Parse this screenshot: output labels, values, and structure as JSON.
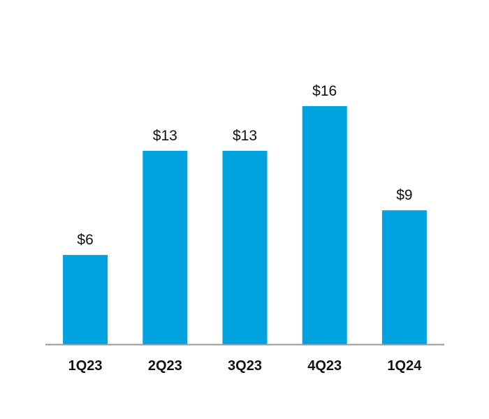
{
  "chart_data": {
    "type": "bar",
    "categories": [
      "1Q23",
      "2Q23",
      "3Q23",
      "4Q23",
      "1Q24"
    ],
    "values": [
      6,
      13,
      13,
      16,
      9
    ],
    "data_labels": [
      "$6",
      "$13",
      "$13",
      "$16",
      "$9"
    ],
    "title": "",
    "xlabel": "",
    "ylabel": "",
    "ylim": [
      0,
      16
    ],
    "grid": false,
    "colors": {
      "bar": "#00a3e0",
      "axis": "#999999",
      "text": "#111111"
    }
  }
}
